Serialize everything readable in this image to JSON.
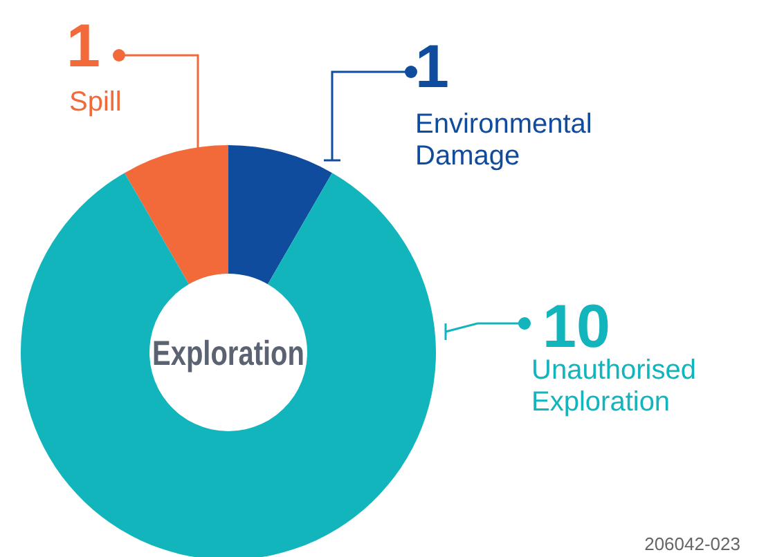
{
  "chart_data": {
    "type": "donut",
    "title": "Exploration",
    "categories": [
      "Spill",
      "Environmental Damage",
      "Unauthorised Exploration"
    ],
    "values": [
      1,
      1,
      10
    ],
    "colors": [
      "#f26a3a",
      "#0f4c9e",
      "#13b5bd"
    ],
    "data_labels": true,
    "legend": "top right",
    "annotations": [
      "206042-023"
    ]
  }
}
